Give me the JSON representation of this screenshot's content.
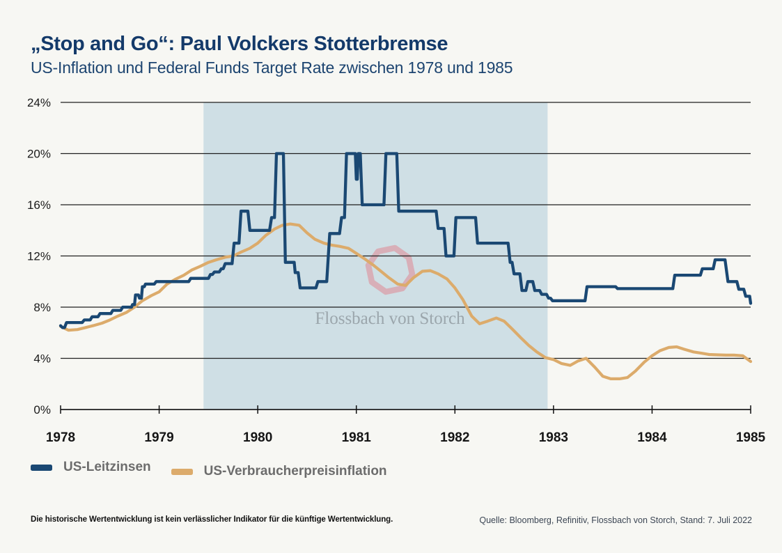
{
  "header": {
    "title": "„Stop and Go“: Paul Volckers Stotterbremse",
    "subtitle": "US-Inflation und Federal Funds Target Rate zwischen 1978 und 1985"
  },
  "watermark": {
    "brand": "Flossbach von Storch",
    "ring_color": "#d9a2ac",
    "text_color": "#99a3a9"
  },
  "footer": {
    "disclaimer": "Die historische Wertentwicklung ist kein verlässlicher Indikator für die künftige Wertentwicklung.",
    "source": "Quelle: Bloomberg, Refinitiv, Flossbach von Storch, Stand: 7. Juli 2022"
  },
  "chart_data": {
    "type": "line",
    "title": "„Stop and Go“: Paul Volckers Stotterbremse",
    "subtitle": "US-Inflation und Federal Funds Target Rate zwischen 1978 und 1985",
    "xlabel": "",
    "ylabel": "",
    "x_range": [
      1978,
      1985
    ],
    "y_range": [
      0,
      24
    ],
    "grid": true,
    "legend_position": "bottom-left",
    "y_ticks": [
      {
        "v": 24,
        "label": "24%"
      },
      {
        "v": 20,
        "label": "20%"
      },
      {
        "v": 16,
        "label": "16%"
      },
      {
        "v": 12,
        "label": "12%"
      },
      {
        "v": 8,
        "label": "8%"
      },
      {
        "v": 4,
        "label": "4%"
      },
      {
        "v": 0,
        "label": "0%"
      }
    ],
    "x_ticks": [
      {
        "v": 1978,
        "label": "1978"
      },
      {
        "v": 1979,
        "label": "1979"
      },
      {
        "v": 1980,
        "label": "1980"
      },
      {
        "v": 1981,
        "label": "1981"
      },
      {
        "v": 1982,
        "label": "1982"
      },
      {
        "v": 1983,
        "label": "1983"
      },
      {
        "v": 1984,
        "label": "1984"
      },
      {
        "v": 1985,
        "label": "1985"
      }
    ],
    "highlight_region": {
      "x_start": 1979.45,
      "x_end": 1982.94,
      "color": "#cfdfe5",
      "meaning": "Volcker Stop-and-Go period"
    },
    "series": [
      {
        "name": "US-Leitzinsen",
        "color": "#1a4873",
        "points": [
          [
            1978.0,
            6.55
          ],
          [
            1978.02,
            6.4
          ],
          [
            1978.04,
            6.4
          ],
          [
            1978.06,
            6.8
          ],
          [
            1978.22,
            6.8
          ],
          [
            1978.24,
            7.0
          ],
          [
            1978.3,
            7.0
          ],
          [
            1978.32,
            7.25
          ],
          [
            1978.38,
            7.25
          ],
          [
            1978.4,
            7.5
          ],
          [
            1978.51,
            7.5
          ],
          [
            1978.53,
            7.75
          ],
          [
            1978.61,
            7.75
          ],
          [
            1978.63,
            8.0
          ],
          [
            1978.72,
            8.0
          ],
          [
            1978.73,
            8.2
          ],
          [
            1978.75,
            8.2
          ],
          [
            1978.76,
            8.95
          ],
          [
            1978.79,
            8.95
          ],
          [
            1978.8,
            8.7
          ],
          [
            1978.82,
            8.7
          ],
          [
            1978.83,
            9.6
          ],
          [
            1978.85,
            9.6
          ],
          [
            1978.86,
            9.8
          ],
          [
            1978.95,
            9.8
          ],
          [
            1978.97,
            10.0
          ],
          [
            1979.3,
            10.0
          ],
          [
            1979.32,
            10.25
          ],
          [
            1979.5,
            10.25
          ],
          [
            1979.52,
            10.55
          ],
          [
            1979.54,
            10.55
          ],
          [
            1979.56,
            10.75
          ],
          [
            1979.61,
            10.75
          ],
          [
            1979.63,
            11.0
          ],
          [
            1979.65,
            11.0
          ],
          [
            1979.67,
            11.4
          ],
          [
            1979.74,
            11.4
          ],
          [
            1979.76,
            13.0
          ],
          [
            1979.81,
            13.0
          ],
          [
            1979.83,
            15.5
          ],
          [
            1979.9,
            15.5
          ],
          [
            1979.92,
            14.0
          ],
          [
            1980.12,
            14.0
          ],
          [
            1980.14,
            15.0
          ],
          [
            1980.17,
            15.0
          ],
          [
            1980.19,
            20.0
          ],
          [
            1980.26,
            20.0
          ],
          [
            1980.28,
            11.5
          ],
          [
            1980.37,
            11.5
          ],
          [
            1980.38,
            10.7
          ],
          [
            1980.41,
            10.7
          ],
          [
            1980.43,
            9.5
          ],
          [
            1980.59,
            9.5
          ],
          [
            1980.61,
            10.0
          ],
          [
            1980.7,
            10.0
          ],
          [
            1980.73,
            13.75
          ],
          [
            1980.83,
            13.75
          ],
          [
            1980.85,
            15.0
          ],
          [
            1980.88,
            15.0
          ],
          [
            1980.9,
            20.0
          ],
          [
            1980.99,
            20.0
          ],
          [
            1981.0,
            18.0
          ],
          [
            1981.01,
            18.0
          ],
          [
            1981.02,
            20.0
          ],
          [
            1981.04,
            20.0
          ],
          [
            1981.06,
            16.0
          ],
          [
            1981.28,
            16.0
          ],
          [
            1981.3,
            20.0
          ],
          [
            1981.41,
            20.0
          ],
          [
            1981.43,
            15.5
          ],
          [
            1981.81,
            15.5
          ],
          [
            1981.83,
            14.15
          ],
          [
            1981.89,
            14.15
          ],
          [
            1981.91,
            12.0
          ],
          [
            1981.99,
            12.0
          ],
          [
            1982.01,
            15.0
          ],
          [
            1982.21,
            15.0
          ],
          [
            1982.23,
            13.0
          ],
          [
            1982.54,
            13.0
          ],
          [
            1982.56,
            11.5
          ],
          [
            1982.58,
            11.5
          ],
          [
            1982.6,
            10.6
          ],
          [
            1982.66,
            10.6
          ],
          [
            1982.68,
            9.3
          ],
          [
            1982.72,
            9.3
          ],
          [
            1982.74,
            10.0
          ],
          [
            1982.79,
            10.0
          ],
          [
            1982.81,
            9.3
          ],
          [
            1982.86,
            9.3
          ],
          [
            1982.88,
            9.0
          ],
          [
            1982.93,
            9.0
          ],
          [
            1982.95,
            8.7
          ],
          [
            1982.97,
            8.7
          ],
          [
            1982.99,
            8.5
          ],
          [
            1983.32,
            8.5
          ],
          [
            1983.34,
            9.6
          ],
          [
            1983.63,
            9.6
          ],
          [
            1983.65,
            9.45
          ],
          [
            1984.21,
            9.45
          ],
          [
            1984.23,
            10.5
          ],
          [
            1984.49,
            10.5
          ],
          [
            1984.51,
            11.0
          ],
          [
            1984.62,
            11.0
          ],
          [
            1984.64,
            11.7
          ],
          [
            1984.74,
            11.7
          ],
          [
            1984.77,
            10.0
          ],
          [
            1984.86,
            10.0
          ],
          [
            1984.88,
            9.4
          ],
          [
            1984.93,
            9.4
          ],
          [
            1984.95,
            8.85
          ],
          [
            1984.99,
            8.85
          ],
          [
            1985.0,
            8.3
          ]
        ]
      },
      {
        "name": "US-Verbraucherpreisinflation",
        "color": "#dcab6b",
        "points": [
          [
            1978.0,
            6.5
          ],
          [
            1978.08,
            6.2
          ],
          [
            1978.17,
            6.25
          ],
          [
            1978.25,
            6.4
          ],
          [
            1978.33,
            6.55
          ],
          [
            1978.42,
            6.75
          ],
          [
            1978.5,
            7.0
          ],
          [
            1978.58,
            7.3
          ],
          [
            1978.67,
            7.6
          ],
          [
            1978.75,
            8.0
          ],
          [
            1978.83,
            8.5
          ],
          [
            1978.92,
            8.9
          ],
          [
            1979.0,
            9.2
          ],
          [
            1979.08,
            9.8
          ],
          [
            1979.17,
            10.2
          ],
          [
            1979.25,
            10.5
          ],
          [
            1979.33,
            10.9
          ],
          [
            1979.42,
            11.2
          ],
          [
            1979.5,
            11.5
          ],
          [
            1979.58,
            11.7
          ],
          [
            1979.67,
            11.9
          ],
          [
            1979.75,
            12.0
          ],
          [
            1979.83,
            12.3
          ],
          [
            1979.92,
            12.6
          ],
          [
            1980.0,
            13.0
          ],
          [
            1980.08,
            13.6
          ],
          [
            1980.17,
            14.1
          ],
          [
            1980.25,
            14.4
          ],
          [
            1980.33,
            14.5
          ],
          [
            1980.42,
            14.4
          ],
          [
            1980.5,
            13.8
          ],
          [
            1980.58,
            13.3
          ],
          [
            1980.67,
            13.0
          ],
          [
            1980.75,
            12.85
          ],
          [
            1980.83,
            12.75
          ],
          [
            1980.92,
            12.6
          ],
          [
            1981.0,
            12.2
          ],
          [
            1981.08,
            11.8
          ],
          [
            1981.17,
            11.3
          ],
          [
            1981.25,
            10.8
          ],
          [
            1981.33,
            10.3
          ],
          [
            1981.42,
            9.8
          ],
          [
            1981.5,
            9.7
          ],
          [
            1981.58,
            10.3
          ],
          [
            1981.67,
            10.8
          ],
          [
            1981.75,
            10.85
          ],
          [
            1981.83,
            10.6
          ],
          [
            1981.92,
            10.2
          ],
          [
            1982.0,
            9.5
          ],
          [
            1982.08,
            8.6
          ],
          [
            1982.17,
            7.3
          ],
          [
            1982.25,
            6.7
          ],
          [
            1982.33,
            6.9
          ],
          [
            1982.42,
            7.15
          ],
          [
            1982.5,
            6.9
          ],
          [
            1982.58,
            6.3
          ],
          [
            1982.67,
            5.6
          ],
          [
            1982.75,
            5.0
          ],
          [
            1982.83,
            4.5
          ],
          [
            1982.92,
            4.05
          ],
          [
            1983.0,
            3.9
          ],
          [
            1983.08,
            3.6
          ],
          [
            1983.17,
            3.45
          ],
          [
            1983.25,
            3.8
          ],
          [
            1983.33,
            4.0
          ],
          [
            1983.42,
            3.3
          ],
          [
            1983.5,
            2.6
          ],
          [
            1983.58,
            2.4
          ],
          [
            1983.67,
            2.4
          ],
          [
            1983.75,
            2.5
          ],
          [
            1983.83,
            3.0
          ],
          [
            1983.92,
            3.7
          ],
          [
            1984.0,
            4.2
          ],
          [
            1984.08,
            4.6
          ],
          [
            1984.17,
            4.85
          ],
          [
            1984.25,
            4.9
          ],
          [
            1984.33,
            4.7
          ],
          [
            1984.42,
            4.5
          ],
          [
            1984.5,
            4.4
          ],
          [
            1984.58,
            4.3
          ],
          [
            1984.67,
            4.27
          ],
          [
            1984.75,
            4.25
          ],
          [
            1984.83,
            4.25
          ],
          [
            1984.92,
            4.2
          ],
          [
            1985.0,
            3.75
          ]
        ]
      }
    ]
  }
}
